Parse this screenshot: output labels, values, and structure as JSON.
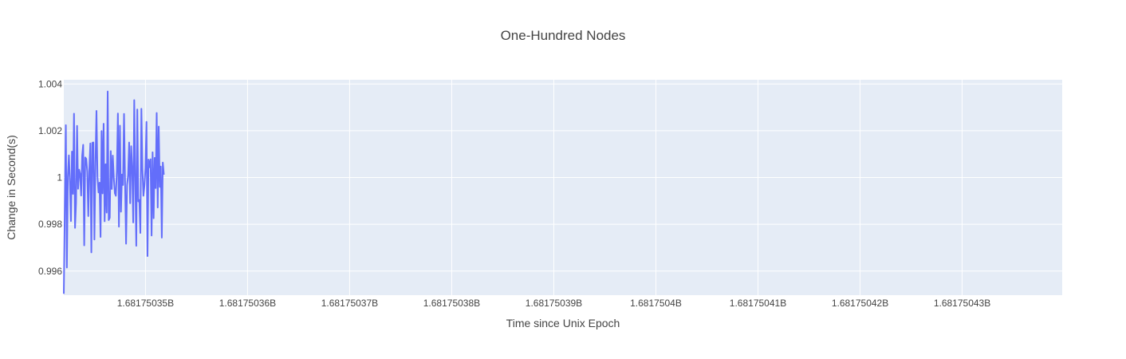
{
  "chart_data": {
    "type": "line",
    "title": "One-Hundred Nodes",
    "xlabel": "Time since Unix Epoch",
    "ylabel": "Change in Second(s)",
    "plot_bg": "#e5ecf6",
    "line_color": "#636efa",
    "grid": true,
    "x_start": 1681750342.0,
    "x_step": 0.1,
    "x_ticks": [
      {
        "value": 1681750350,
        "label": "1.68175035B"
      },
      {
        "value": 1681750360,
        "label": "1.68175036B"
      },
      {
        "value": 1681750370,
        "label": "1.68175037B"
      },
      {
        "value": 1681750380,
        "label": "1.68175038B"
      },
      {
        "value": 1681750390,
        "label": "1.68175039B"
      },
      {
        "value": 1681750400,
        "label": "1.6817504B"
      },
      {
        "value": 1681750410,
        "label": "1.68175041B"
      },
      {
        "value": 1681750420,
        "label": "1.68175042B"
      },
      {
        "value": 1681750430,
        "label": "1.68175043B"
      }
    ],
    "y_ticks": [
      {
        "value": 0.996,
        "label": "0.996"
      },
      {
        "value": 0.998,
        "label": "0.998"
      },
      {
        "value": 1.0,
        "label": "1"
      },
      {
        "value": 1.002,
        "label": "1.002"
      },
      {
        "value": 1.004,
        "label": "1.004"
      }
    ],
    "xlim": [
      1681750342.0,
      1681750439.8
    ],
    "ylim": [
      0.99497,
      1.00418
    ],
    "y": [
      0.99503,
      0.99876,
      1.00224,
      0.99615,
      1.00005,
      1.00095,
      0.99983,
      0.99814,
      1.00111,
      0.9993,
      1.00273,
      0.99785,
      0.99891,
      1.00221,
      0.99952,
      1.00034,
      1.00016,
      0.99923,
      1.00093,
      1.0014,
      0.9971,
      1.00086,
      1.0008,
      1.00025,
      0.99835,
      1.00038,
      1.00146,
      0.9968,
      1.00149,
      1.0015,
      0.99735,
      1.00054,
      1.00285,
      1.00002,
      0.99936,
      0.99978,
      0.99746,
      1.00199,
      0.99932,
      1.0023,
      0.99813,
      1.00057,
      0.9985,
      1.00368,
      0.99818,
      0.99828,
      1.00113,
      0.99951,
      1.00094,
      1.0,
      0.99933,
      0.99922,
      1.00031,
      1.00274,
      0.9979,
      1.00222,
      0.99854,
      1.00013,
      0.99968,
      1.00272,
      0.99985,
      0.99717,
      0.99968,
      1.0001,
      1.0015,
      0.9989,
      1.00134,
      1.00038,
      0.99808,
      1.00331,
      1.00001,
      0.99708,
      1.00291,
      0.99898,
      0.99904,
      0.99763,
      1.00294,
      1.00038,
      0.99922,
      0.99965,
      1.00039,
      1.00238,
      0.99664,
      1.00077,
      1.00044,
      1.00078,
      0.99752,
      1.00108,
      0.99826,
      1.00084,
      0.99955,
      1.00276,
      0.99872,
      1.00218,
      0.9996,
      1.00047,
      0.99743,
      1.00064,
      1.00012
    ]
  }
}
